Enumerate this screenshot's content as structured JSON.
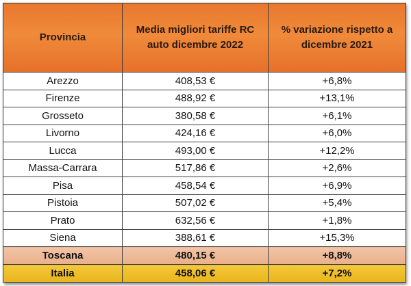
{
  "table": {
    "headers": {
      "province": "Provincia",
      "avg_rate_line1": "Media migliori tariffe RC",
      "avg_rate_line2": "auto dicembre 2022",
      "variation_line1": "% variazione rispetto a",
      "variation_line2": "dicembre 2021"
    },
    "rows": [
      {
        "province": "Arezzo",
        "avg_rate": "408,53 €",
        "variation": "+6,8%"
      },
      {
        "province": "Firenze",
        "avg_rate": "488,92 €",
        "variation": "+13,1%"
      },
      {
        "province": "Grosseto",
        "avg_rate": "380,58 €",
        "variation": "+6,1%"
      },
      {
        "province": "Livorno",
        "avg_rate": "424,16 €",
        "variation": "+6,0%"
      },
      {
        "province": "Lucca",
        "avg_rate": "493,00 €",
        "variation": "+12,2%"
      },
      {
        "province": "Massa-Carrara",
        "avg_rate": "517,86 €",
        "variation": "+2,6%"
      },
      {
        "province": "Pisa",
        "avg_rate": "458,54 €",
        "variation": "+6,9%"
      },
      {
        "province": "Pistoia",
        "avg_rate": "507,02 €",
        "variation": "+5,4%"
      },
      {
        "province": "Prato",
        "avg_rate": "632,56 €",
        "variation": "+1,8%"
      },
      {
        "province": "Siena",
        "avg_rate": "388,61 €",
        "variation": "+15,3%"
      }
    ],
    "totals": {
      "tuscany": {
        "province": "Toscana",
        "avg_rate": "480,15 €",
        "variation": "+8,8%"
      },
      "italy": {
        "province": "Italia",
        "avg_rate": "458,06 €",
        "variation": "+7,2%"
      }
    }
  },
  "colors": {
    "header_bg": "#ec7a30",
    "tuscany_bg": "#edb897",
    "italy_bg": "#efbf2a"
  }
}
